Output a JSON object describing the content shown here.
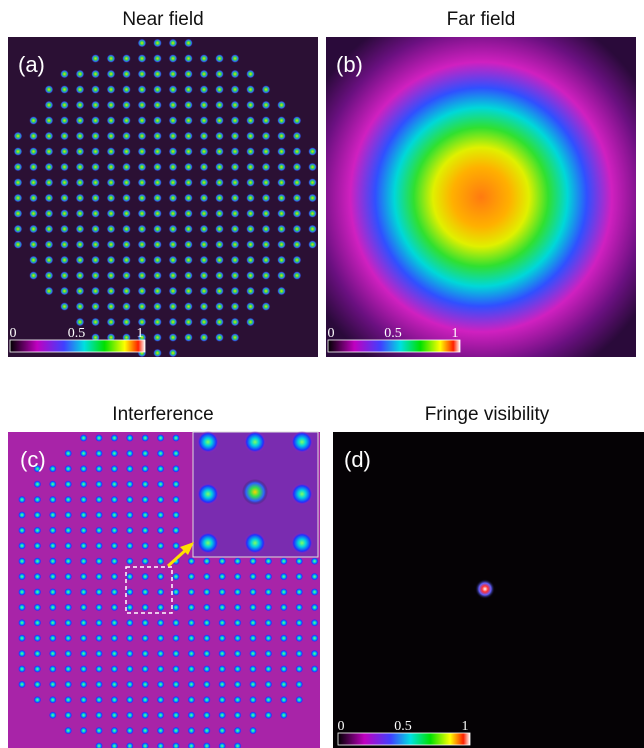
{
  "panels": [
    {
      "title": "Near field",
      "label": "(a)",
      "colorbar": [
        "0",
        "0.5",
        "1"
      ]
    },
    {
      "title": "Far field",
      "label": "(b)",
      "colorbar": [
        "0",
        "0.5",
        "1"
      ]
    },
    {
      "title": "Interference",
      "label": "(c)"
    },
    {
      "title": "Fringe visibility",
      "label": "(d)",
      "colorbar": [
        "0",
        "0.5",
        "1"
      ]
    }
  ]
}
